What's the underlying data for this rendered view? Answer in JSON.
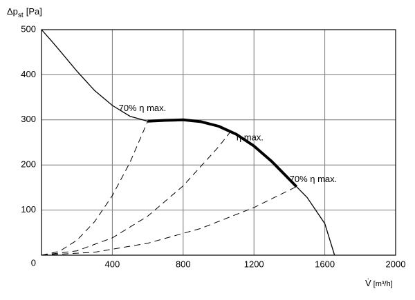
{
  "chart_data": {
    "type": "line",
    "y_label": {
      "main": "Δp",
      "sub": "st",
      "unit": "[Pa]"
    },
    "x_label": {
      "main": "V̇",
      "unit": "[m³/h]"
    },
    "xlim": [
      0,
      2000
    ],
    "ylim": [
      0,
      500
    ],
    "xticks": [
      0,
      400,
      800,
      1200,
      1600,
      2000
    ],
    "yticks": [
      0,
      100,
      200,
      300,
      400,
      500
    ],
    "grid": true,
    "fan_curve": {
      "x": [
        0,
        50,
        100,
        200,
        300,
        400,
        500,
        600,
        700,
        800,
        900,
        1000,
        1100,
        1200,
        1300,
        1400,
        1440,
        1500,
        1600,
        1655
      ],
      "y": [
        500,
        478,
        455,
        408,
        365,
        332,
        308,
        297,
        299,
        300,
        296,
        286,
        268,
        242,
        208,
        168,
        152,
        128,
        70,
        0
      ],
      "highlight_range": [
        600,
        1440
      ]
    },
    "system_curves": [
      {
        "x": [
          0,
          100,
          200,
          300,
          400,
          500,
          600
        ],
        "y": [
          0,
          8.25,
          33,
          74.25,
          132,
          206,
          297
        ]
      },
      {
        "x": [
          0,
          200,
          400,
          600,
          800,
          1000,
          1070
        ],
        "y": [
          0,
          9.6,
          38.4,
          86.5,
          153.7,
          240.2,
          275
        ]
      },
      {
        "x": [
          0,
          300,
          600,
          900,
          1200,
          1440
        ],
        "y": [
          0,
          6.6,
          26.4,
          59.4,
          105.6,
          152
        ]
      }
    ],
    "annotations": [
      "70% η max.",
      "η max.",
      "70% η max."
    ]
  }
}
